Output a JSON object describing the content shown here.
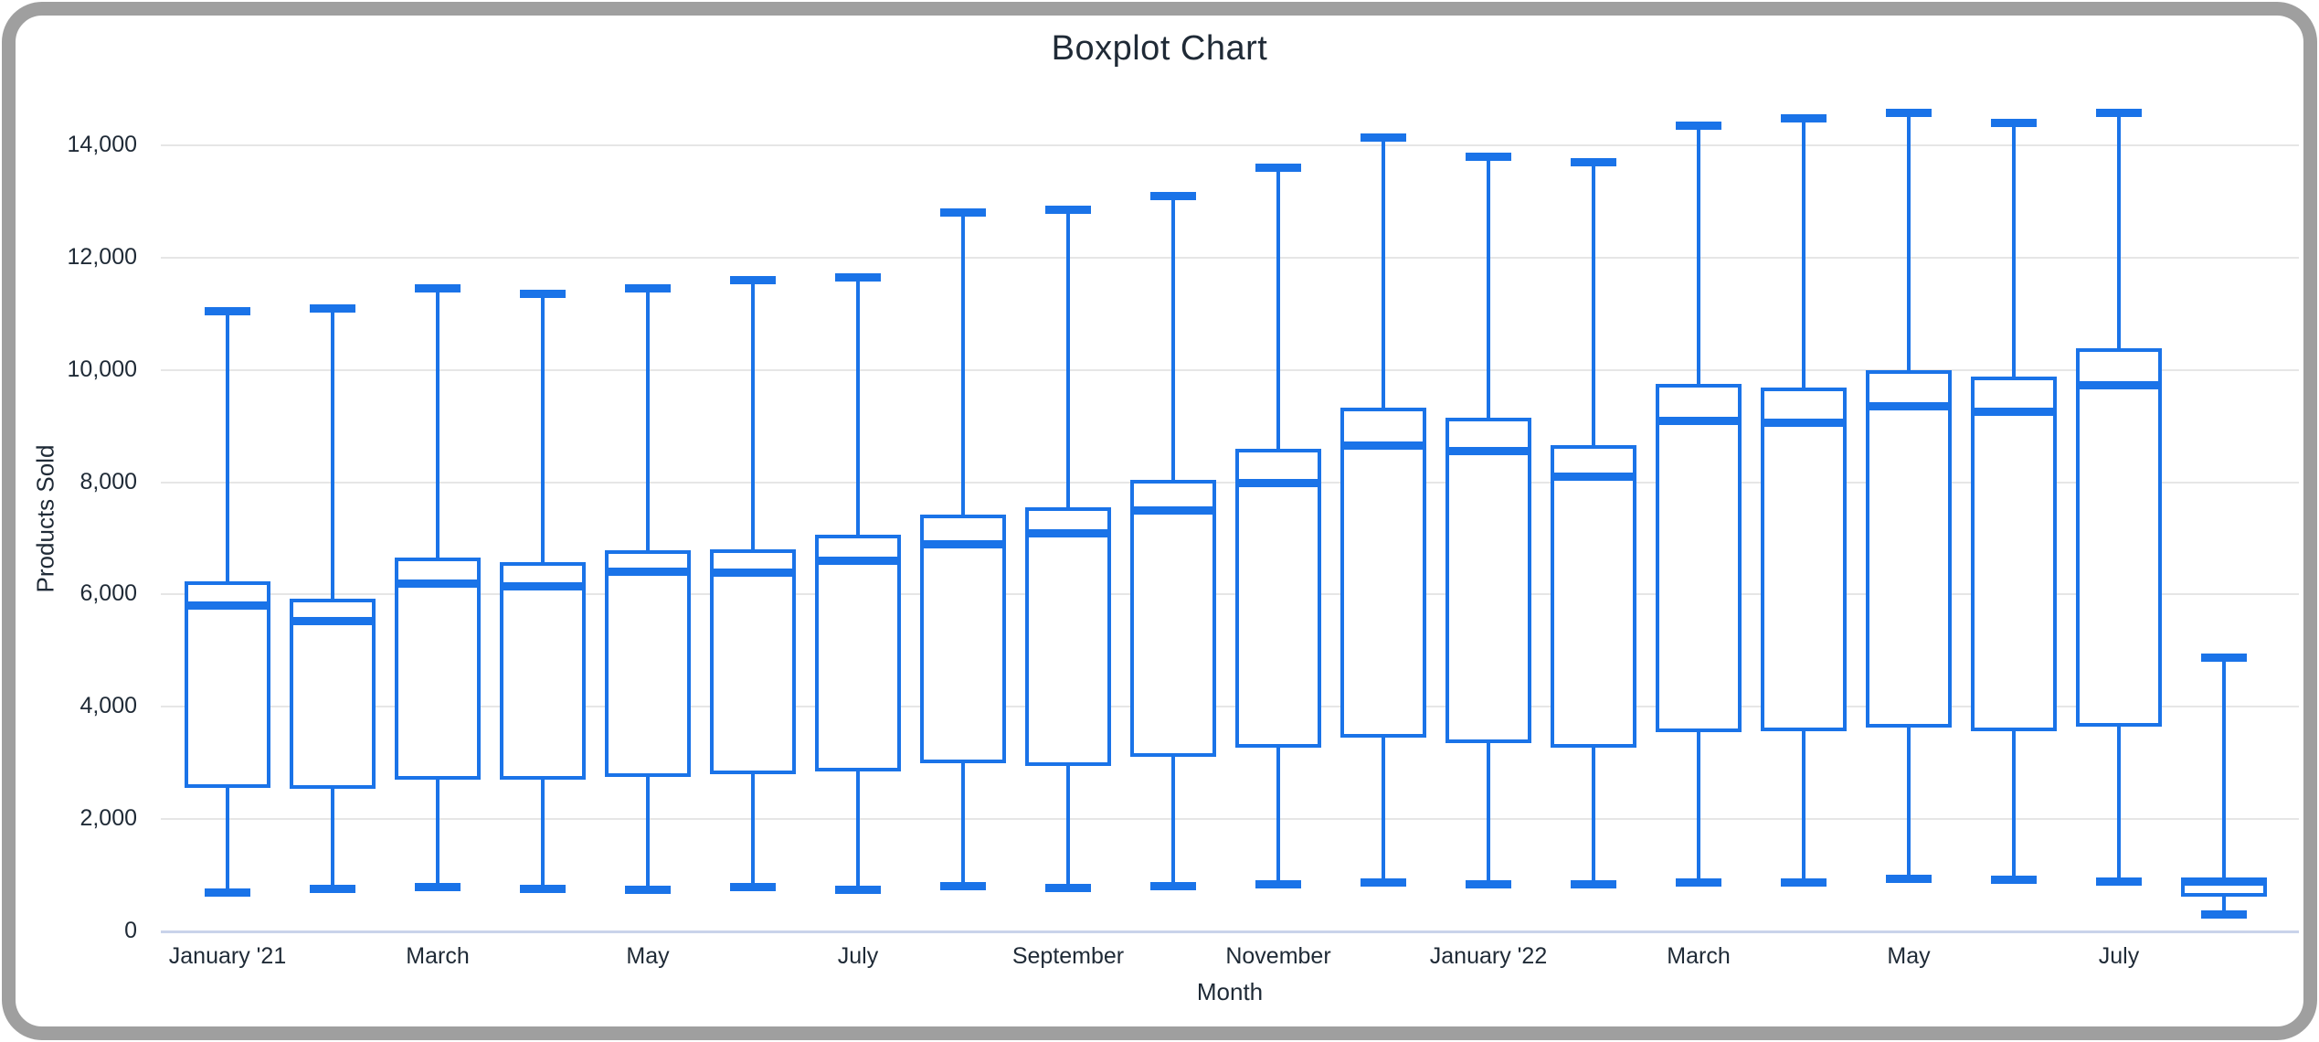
{
  "title": "Boxplot Chart",
  "y_axis": {
    "title": "Products Sold",
    "tick_labels": [
      "0",
      "2,000",
      "4,000",
      "6,000",
      "8,000",
      "10,000",
      "12,000",
      "14,000"
    ],
    "tick_values": [
      0,
      2000,
      4000,
      6000,
      8000,
      10000,
      12000,
      14000
    ]
  },
  "x_axis": {
    "title": "Month",
    "tick_labels": [
      "January '21",
      "March",
      "May",
      "July",
      "September",
      "November",
      "January '22",
      "March",
      "May",
      "July"
    ],
    "tick_box_indices": [
      0,
      2,
      4,
      6,
      8,
      10,
      12,
      14,
      16,
      18
    ]
  },
  "colors": {
    "series_blue": "#1a73e8",
    "gridline": "#e6e6e6",
    "zero_line": "#c9d3ea",
    "text": "#1f2a36",
    "frame_gray": "#9f9f9f"
  },
  "chart_data": {
    "type": "boxplot",
    "title": "Boxplot Chart",
    "xlabel": "Month",
    "ylabel": "Products Sold",
    "ylim": [
      0,
      14000
    ],
    "grid": true,
    "legend": "none",
    "y_ticks": [
      0,
      2000,
      4000,
      6000,
      8000,
      10000,
      12000,
      14000
    ],
    "x_tick_labels": [
      "January '21",
      "March",
      "May",
      "July",
      "September",
      "November",
      "January '22",
      "March",
      "May",
      "July"
    ],
    "boxes": [
      {
        "tick_label": "January '21",
        "min": 680,
        "q1": 2550,
        "median": 5800,
        "q3": 6230,
        "max": 11050
      },
      {
        "tick_label": "",
        "min": 750,
        "q1": 2530,
        "median": 5520,
        "q3": 5920,
        "max": 11100
      },
      {
        "tick_label": "March",
        "min": 780,
        "q1": 2700,
        "median": 6200,
        "q3": 6650,
        "max": 11450
      },
      {
        "tick_label": "",
        "min": 760,
        "q1": 2700,
        "median": 6150,
        "q3": 6580,
        "max": 11350
      },
      {
        "tick_label": "May",
        "min": 740,
        "q1": 2750,
        "median": 6400,
        "q3": 6780,
        "max": 11450
      },
      {
        "tick_label": "",
        "min": 780,
        "q1": 2800,
        "median": 6390,
        "q3": 6810,
        "max": 11600
      },
      {
        "tick_label": "July",
        "min": 740,
        "q1": 2850,
        "median": 6600,
        "q3": 7070,
        "max": 11650
      },
      {
        "tick_label": "",
        "min": 800,
        "q1": 3000,
        "median": 6890,
        "q3": 7420,
        "max": 12800
      },
      {
        "tick_label": "September",
        "min": 770,
        "q1": 2950,
        "median": 7090,
        "q3": 7550,
        "max": 12850
      },
      {
        "tick_label": "",
        "min": 800,
        "q1": 3100,
        "median": 7500,
        "q3": 8040,
        "max": 13100
      },
      {
        "tick_label": "November",
        "min": 830,
        "q1": 3270,
        "median": 7980,
        "q3": 8600,
        "max": 13600
      },
      {
        "tick_label": "",
        "min": 860,
        "q1": 3450,
        "median": 8660,
        "q3": 9330,
        "max": 14150
      },
      {
        "tick_label": "January '22",
        "min": 830,
        "q1": 3350,
        "median": 8550,
        "q3": 9150,
        "max": 13800
      },
      {
        "tick_label": "",
        "min": 840,
        "q1": 3270,
        "median": 8100,
        "q3": 8660,
        "max": 13700
      },
      {
        "tick_label": "March",
        "min": 860,
        "q1": 3540,
        "median": 9100,
        "q3": 9760,
        "max": 14350
      },
      {
        "tick_label": "",
        "min": 860,
        "q1": 3570,
        "median": 9060,
        "q3": 9690,
        "max": 14480
      },
      {
        "tick_label": "May",
        "min": 930,
        "q1": 3620,
        "median": 9360,
        "q3": 10000,
        "max": 14580
      },
      {
        "tick_label": "",
        "min": 910,
        "q1": 3560,
        "median": 9260,
        "q3": 9880,
        "max": 14400
      },
      {
        "tick_label": "July",
        "min": 890,
        "q1": 3640,
        "median": 9730,
        "q3": 10390,
        "max": 14580
      },
      {
        "tick_label": "",
        "min": 300,
        "q1": 620,
        "median": 880,
        "q3": 920,
        "max": 4870
      }
    ]
  }
}
